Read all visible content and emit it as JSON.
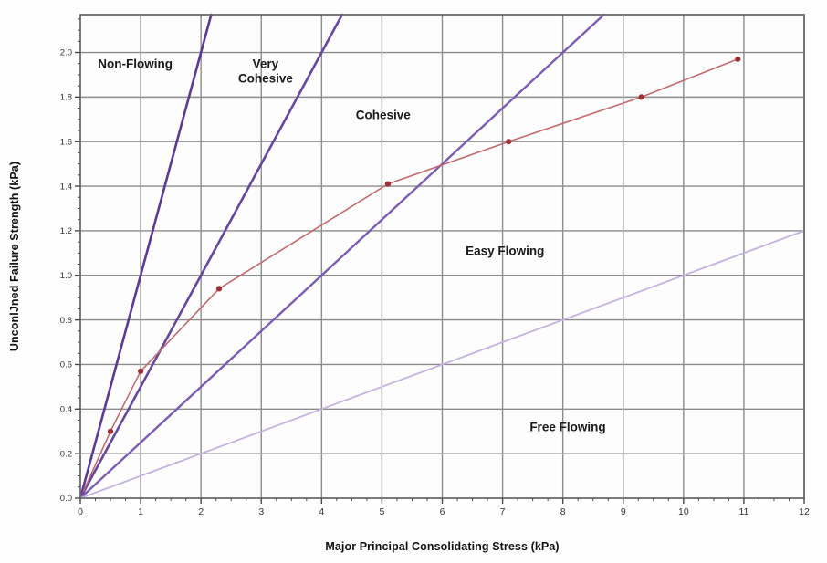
{
  "figure": {
    "background": "#fefefe",
    "border_color": "#6b6b6b",
    "grid_color": "#8c8c8c",
    "tick_color": "#4a4a4a",
    "tick_label_color": "#333333"
  },
  "chart_data": {
    "type": "line",
    "title": "",
    "xlabel": "Major Principal Consolidating Stress (kPa)",
    "ylabel": "UnconlJned Failure Strength (kPa)",
    "xlim": [
      0,
      12
    ],
    "ylim": [
      0,
      2.17
    ],
    "grid": true,
    "x_major_step": 1,
    "x_minor_step": 0.25,
    "y_major_step": 0.2,
    "y_minor_step": 0.05,
    "x_tick_labels": [
      "0",
      "1",
      "2",
      "3",
      "4",
      "5",
      "6",
      "7",
      "8",
      "9",
      "10",
      "11",
      "12"
    ],
    "y_tick_labels": [
      "0.0",
      "0.2",
      "0.4",
      "0.6",
      "0.8",
      "1.0",
      "1.2",
      "1.4",
      "1.6",
      "1.8",
      "2.0"
    ],
    "series": [
      {
        "name": "measured-flow-function",
        "color": "#c46a6e",
        "marker_color": "#9e2f35",
        "line_start": [
          0.05,
          0.03
        ],
        "points": [
          [
            0.5,
            0.3
          ],
          [
            1.0,
            0.57
          ],
          [
            2.3,
            0.94
          ],
          [
            5.1,
            1.41
          ],
          [
            7.1,
            1.6
          ],
          [
            9.3,
            1.8
          ],
          [
            10.9,
            1.97
          ]
        ]
      }
    ],
    "boundary_lines": [
      {
        "name": "ffc-1-boundary",
        "slope": 1.0,
        "color": "#5a3a96",
        "width": 2.6
      },
      {
        "name": "ffc-2-boundary",
        "slope": 0.5,
        "color": "#6546a0",
        "width": 2.6
      },
      {
        "name": "ffc-4-boundary",
        "slope": 0.25,
        "color": "#7b5cb5",
        "width": 2.4
      },
      {
        "name": "ffc-10-boundary",
        "slope": 0.1,
        "color": "#c5b2e0",
        "width": 1.8
      }
    ],
    "region_labels": [
      {
        "text": "Non-Flowing",
        "x": 0.91,
        "y": 1.95
      },
      {
        "text": "Very\nCohesive",
        "x": 3.07,
        "y": 1.95
      },
      {
        "text": "Cohesive",
        "x": 5.02,
        "y": 1.72
      },
      {
        "text": "Easy Flowing",
        "x": 7.04,
        "y": 1.11
      },
      {
        "text": "Free Flowing",
        "x": 8.08,
        "y": 0.32
      }
    ]
  }
}
